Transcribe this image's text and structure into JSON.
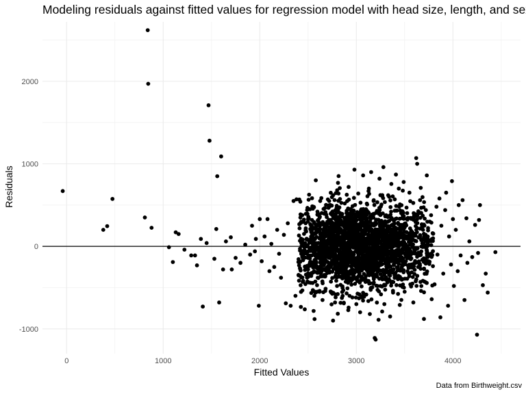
{
  "chart_data": {
    "type": "scatter",
    "title": "Modeling residuals against fitted values for regression model with head size, length, and sex",
    "xlabel": "Fitted Values",
    "ylabel": "Residuals",
    "caption": "Data from Birthweight.csv",
    "xlim": [
      -250,
      4700
    ],
    "ylim": [
      -1300,
      2720
    ],
    "x_ticks": [
      0,
      1000,
      2000,
      3000,
      4000
    ],
    "x_tick_labels": [
      "0",
      "1000",
      "2000",
      "3000",
      "4000"
    ],
    "y_ticks": [
      -1000,
      0,
      1000,
      2000
    ],
    "y_tick_labels": [
      "-1000",
      "0",
      "1000",
      "2000"
    ],
    "reference_line_y": 0,
    "grid": true,
    "point_color": "#000000",
    "points": [
      [
        -40,
        670
      ],
      [
        380,
        200
      ],
      [
        420,
        245
      ],
      [
        475,
        575
      ],
      [
        810,
        350
      ],
      [
        840,
        2620
      ],
      [
        845,
        1970
      ],
      [
        880,
        225
      ],
      [
        1060,
        -10
      ],
      [
        1100,
        -190
      ],
      [
        1130,
        170
      ],
      [
        1160,
        150
      ],
      [
        1220,
        -40
      ],
      [
        1290,
        -110
      ],
      [
        1330,
        -110
      ],
      [
        1350,
        -230
      ],
      [
        1390,
        90
      ],
      [
        1410,
        -730
      ],
      [
        1450,
        40
      ],
      [
        1470,
        1710
      ],
      [
        1480,
        1280
      ],
      [
        1530,
        -150
      ],
      [
        1550,
        210
      ],
      [
        1560,
        850
      ],
      [
        1580,
        -680
      ],
      [
        1600,
        1090
      ],
      [
        1620,
        -280
      ],
      [
        1650,
        60
      ],
      [
        1700,
        110
      ],
      [
        1710,
        -280
      ],
      [
        1750,
        -140
      ],
      [
        1800,
        -200
      ],
      [
        1850,
        20
      ],
      [
        1900,
        -100
      ],
      [
        1920,
        250
      ],
      [
        1950,
        -60
      ],
      [
        1960,
        90
      ],
      [
        1990,
        -720
      ],
      [
        2000,
        330
      ],
      [
        2020,
        -180
      ],
      [
        2050,
        120
      ],
      [
        2080,
        330
      ],
      [
        2100,
        -300
      ],
      [
        2120,
        30
      ],
      [
        2150,
        -250
      ],
      [
        2180,
        200
      ],
      [
        2200,
        -90
      ],
      [
        2220,
        -380
      ],
      [
        2250,
        140
      ],
      [
        2270,
        -690
      ],
      [
        2290,
        280
      ],
      [
        2320,
        -720
      ],
      [
        2350,
        550
      ],
      [
        2370,
        -600
      ],
      [
        2380,
        570
      ],
      [
        2400,
        -190
      ],
      [
        2420,
        280
      ],
      [
        2450,
        -420
      ],
      [
        2480,
        180
      ],
      [
        2500,
        -280
      ],
      [
        2520,
        450
      ],
      [
        2550,
        -530
      ],
      [
        2580,
        800
      ],
      [
        2600,
        -380
      ],
      [
        2620,
        350
      ],
      [
        2650,
        -650
      ],
      [
        2680,
        150
      ],
      [
        2700,
        -250
      ],
      [
        2720,
        480
      ],
      [
        2740,
        -560
      ],
      [
        2760,
        620
      ],
      [
        2780,
        100
      ],
      [
        2800,
        -480
      ],
      [
        2810,
        770
      ],
      [
        2830,
        -300
      ],
      [
        2850,
        260
      ],
      [
        2870,
        -690
      ],
      [
        2880,
        520
      ],
      [
        2900,
        -110
      ],
      [
        2920,
        720
      ],
      [
        2930,
        -600
      ],
      [
        2950,
        380
      ],
      [
        2970,
        -230
      ],
      [
        2980,
        930
      ],
      [
        3000,
        -700
      ],
      [
        3010,
        180
      ],
      [
        3020,
        640
      ],
      [
        3040,
        -420
      ],
      [
        3060,
        40
      ],
      [
        3070,
        860
      ],
      [
        3080,
        -610
      ],
      [
        3100,
        450
      ],
      [
        3110,
        -200
      ],
      [
        3130,
        700
      ],
      [
        3140,
        -820
      ],
      [
        3150,
        250
      ],
      [
        3160,
        -330
      ],
      [
        3180,
        560
      ],
      [
        3190,
        -1110
      ],
      [
        3200,
        -1130
      ],
      [
        3210,
        80
      ],
      [
        3230,
        -890
      ],
      [
        3240,
        820
      ],
      [
        3250,
        -480
      ],
      [
        3260,
        310
      ],
      [
        3280,
        960
      ],
      [
        3290,
        -700
      ],
      [
        3300,
        150
      ],
      [
        3320,
        -240
      ],
      [
        3330,
        620
      ],
      [
        3350,
        -850
      ],
      [
        3360,
        420
      ],
      [
        3380,
        -560
      ],
      [
        3400,
        90
      ],
      [
        3410,
        870
      ],
      [
        3420,
        -380
      ],
      [
        3440,
        700
      ],
      [
        3450,
        -710
      ],
      [
        3460,
        260
      ],
      [
        3480,
        -150
      ],
      [
        3490,
        780
      ],
      [
        3500,
        -550
      ],
      [
        3520,
        470
      ],
      [
        3530,
        -300
      ],
      [
        3550,
        650
      ],
      [
        3560,
        -460
      ],
      [
        3570,
        130
      ],
      [
        3590,
        -680
      ],
      [
        3600,
        380
      ],
      [
        3620,
        1070
      ],
      [
        3630,
        1000
      ],
      [
        3640,
        -250
      ],
      [
        3660,
        560
      ],
      [
        3670,
        -540
      ],
      [
        3690,
        200
      ],
      [
        3700,
        -880
      ],
      [
        3720,
        440
      ],
      [
        3730,
        860
      ],
      [
        3740,
        -130
      ],
      [
        3760,
        300
      ],
      [
        3780,
        -640
      ],
      [
        3790,
        160
      ],
      [
        3810,
        -460
      ],
      [
        3830,
        480
      ],
      [
        3840,
        -100
      ],
      [
        3860,
        580
      ],
      [
        3870,
        -860
      ],
      [
        3880,
        250
      ],
      [
        3900,
        -330
      ],
      [
        3920,
        440
      ],
      [
        3930,
        650
      ],
      [
        3950,
        -720
      ],
      [
        3960,
        120
      ],
      [
        3980,
        -220
      ],
      [
        3990,
        790
      ],
      [
        4000,
        330
      ],
      [
        4010,
        -480
      ],
      [
        4030,
        200
      ],
      [
        4050,
        -300
      ],
      [
        4060,
        500
      ],
      [
        4080,
        -110
      ],
      [
        4100,
        560
      ],
      [
        4120,
        -650
      ],
      [
        4140,
        340
      ],
      [
        4150,
        -200
      ],
      [
        4170,
        60
      ],
      [
        4200,
        -130
      ],
      [
        4230,
        260
      ],
      [
        4250,
        -1070
      ],
      [
        4260,
        -80
      ],
      [
        4270,
        320
      ],
      [
        4280,
        500
      ],
      [
        4310,
        -470
      ],
      [
        4340,
        -330
      ],
      [
        4360,
        -560
      ],
      [
        4440,
        -70
      ]
    ],
    "dense_cloud": {
      "x_range": [
        2400,
        3800
      ],
      "center": [
        3000,
        0
      ],
      "spread": [
        420,
        260
      ]
    }
  }
}
